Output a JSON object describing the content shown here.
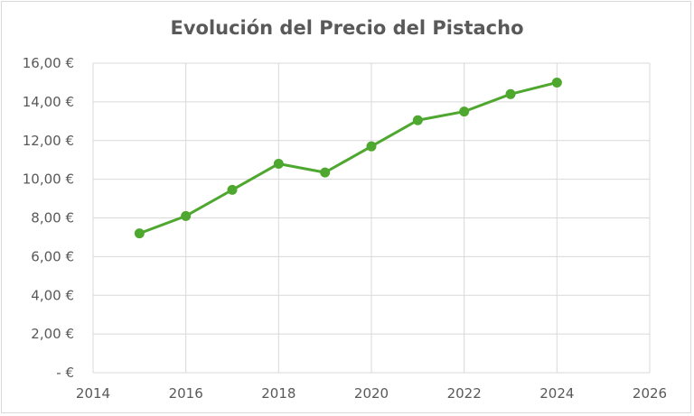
{
  "chart_data": {
    "type": "line",
    "title": "Evolución del Precio del Pistacho",
    "xlabel": "",
    "ylabel": "",
    "x": [
      2015,
      2016,
      2017,
      2018,
      2019,
      2020,
      2021,
      2022,
      2023,
      2024
    ],
    "series": [
      {
        "values": [
          7.2,
          8.1,
          9.45,
          10.8,
          10.35,
          11.7,
          13.05,
          13.5,
          14.4,
          15.0
        ]
      }
    ],
    "xlim": [
      2014,
      2026
    ],
    "ylim": [
      0,
      16
    ],
    "x_ticks": [
      "2014",
      "2016",
      "2018",
      "2020",
      "2022",
      "2024",
      "2026"
    ],
    "y_ticks": [
      "-  €",
      "2,00 €",
      "4,00 €",
      "6,00 €",
      "8,00 €",
      "10,00 €",
      "12,00 €",
      "14,00 €",
      "16,00 €"
    ],
    "grid": true,
    "legend": "none",
    "line_color": "#4ea72e"
  }
}
